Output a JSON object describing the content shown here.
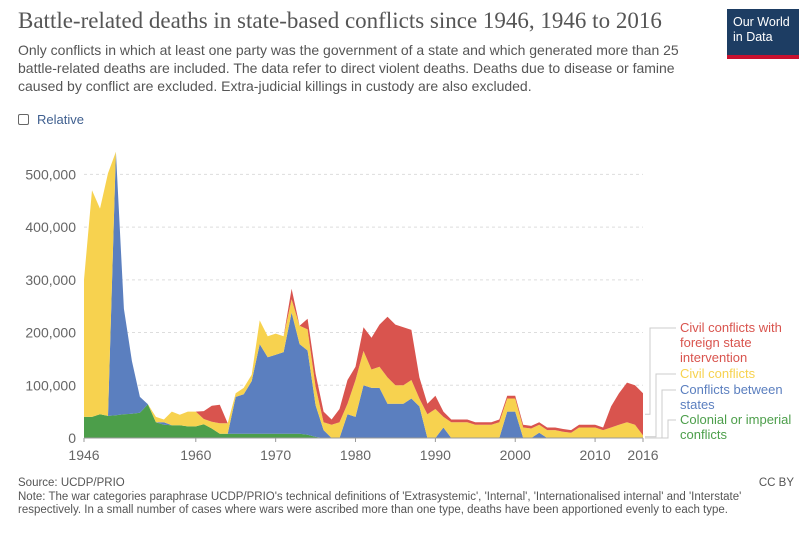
{
  "header": {
    "title": "Battle-related deaths in state-based conflicts since 1946, 1946 to 2016",
    "subtitle": "Only conflicts in which at least one party was the government of a state and which generated more than 25 battle-related deaths are included. The data refer to direct violent deaths. Deaths due to disease or famine caused by conflict are excluded. Extra-judicial killings in custody are also excluded."
  },
  "logo": {
    "line1": "Our World",
    "line2": "in Data"
  },
  "controls": {
    "relative_label": "Relative"
  },
  "footer": {
    "source": "Source: UCDP/PRIO",
    "note": "Note: The war categories paraphrase UCDP/PRIO's technical definitions of 'Extrasystemic', 'Internal', 'Internationalised internal' and 'Interstate' respectively. In a small number of cases where wars were ascribed more than one type, deaths have been apportioned evenly to each type.",
    "license": "CC BY"
  },
  "colors": {
    "colonial": "#4c9e4a",
    "between": "#5b7fbf",
    "civil": "#f7d24f",
    "foreign": "#d9544e",
    "grid": "#dddddd"
  },
  "chart_data": {
    "type": "area",
    "stacked": true,
    "title": "Battle-related deaths in state-based conflicts since 1946, 1946 to 2016",
    "xlabel": "",
    "ylabel": "",
    "xlim": [
      1946,
      2016
    ],
    "ylim": [
      0,
      550000
    ],
    "yticks": [
      0,
      100000,
      200000,
      300000,
      400000,
      500000
    ],
    "ytick_labels": [
      "0",
      "100,000",
      "200,000",
      "300,000",
      "400,000",
      "500,000"
    ],
    "xticks": [
      1946,
      1960,
      1970,
      1980,
      1990,
      2000,
      2010,
      2016
    ],
    "xtick_labels": [
      "1946",
      "1960",
      "1970",
      "1980",
      "1990",
      "2000",
      "2010",
      "2016"
    ],
    "x": [
      1946,
      1947,
      1948,
      1949,
      1950,
      1951,
      1952,
      1953,
      1954,
      1955,
      1956,
      1957,
      1958,
      1959,
      1960,
      1961,
      1962,
      1963,
      1964,
      1965,
      1966,
      1967,
      1968,
      1969,
      1970,
      1971,
      1972,
      1973,
      1974,
      1975,
      1976,
      1977,
      1978,
      1979,
      1980,
      1981,
      1982,
      1983,
      1984,
      1985,
      1986,
      1987,
      1988,
      1989,
      1990,
      1991,
      1992,
      1993,
      1994,
      1995,
      1996,
      1997,
      1998,
      1999,
      2000,
      2001,
      2002,
      2003,
      2004,
      2005,
      2006,
      2007,
      2008,
      2009,
      2010,
      2011,
      2012,
      2013,
      2014,
      2015,
      2016
    ],
    "series": [
      {
        "name": "Colonial or imperial conflicts",
        "legend": "Colonial or imperial conflicts",
        "color_key": "colonial",
        "values": [
          40000,
          40000,
          45000,
          42000,
          43000,
          45000,
          46000,
          48000,
          64000,
          30000,
          25000,
          24000,
          24000,
          22000,
          22000,
          26000,
          18000,
          8000,
          8000,
          8000,
          8000,
          8000,
          8000,
          8000,
          8000,
          8000,
          8000,
          8000,
          6000,
          2000,
          0,
          0,
          0,
          0,
          0,
          0,
          0,
          0,
          0,
          0,
          0,
          0,
          0,
          0,
          0,
          0,
          0,
          0,
          0,
          0,
          0,
          0,
          0,
          0,
          0,
          0,
          0,
          0,
          0,
          0,
          0,
          0,
          0,
          0,
          0,
          0,
          0,
          0,
          0,
          0,
          0
        ]
      },
      {
        "name": "Conflicts between states",
        "legend": "Conflicts between states",
        "color_key": "between",
        "values": [
          0,
          0,
          0,
          0,
          500000,
          200000,
          100000,
          30000,
          0,
          0,
          5000,
          0,
          0,
          0,
          0,
          0,
          0,
          0,
          0,
          70000,
          75000,
          100000,
          170000,
          145000,
          150000,
          155000,
          230000,
          170000,
          160000,
          60000,
          15000,
          0,
          0,
          45000,
          40000,
          100000,
          95000,
          95000,
          65000,
          65000,
          65000,
          75000,
          60000,
          0,
          0,
          20000,
          0,
          0,
          0,
          0,
          0,
          0,
          0,
          50000,
          50000,
          0,
          0,
          10000,
          0,
          0,
          0,
          0,
          0,
          0,
          0,
          0,
          0,
          0,
          0,
          0,
          0
        ]
      },
      {
        "name": "Civil conflicts",
        "legend": "Civil conflicts",
        "color_key": "civil",
        "values": [
          260000,
          430000,
          390000,
          460000,
          0,
          0,
          0,
          0,
          0,
          10000,
          5000,
          26000,
          20000,
          28000,
          28000,
          10000,
          13000,
          20000,
          20000,
          7000,
          12000,
          12000,
          45000,
          40000,
          40000,
          30000,
          25000,
          35000,
          40000,
          35000,
          15000,
          25000,
          30000,
          20000,
          70000,
          65000,
          35000,
          40000,
          50000,
          35000,
          35000,
          35000,
          15000,
          45000,
          55000,
          20000,
          30000,
          30000,
          30000,
          25000,
          25000,
          25000,
          30000,
          25000,
          25000,
          20000,
          18000,
          15000,
          15000,
          15000,
          12000,
          10000,
          20000,
          20000,
          20000,
          15000,
          20000,
          25000,
          30000,
          25000,
          5000
        ]
      },
      {
        "name": "Civil conflicts with foreign state intervention",
        "legend": "Civil conflicts with foreign state intervention",
        "color_key": "foreign",
        "values": [
          0,
          0,
          0,
          0,
          0,
          0,
          0,
          0,
          0,
          0,
          0,
          0,
          0,
          0,
          0,
          15000,
          30000,
          35000,
          0,
          0,
          0,
          0,
          0,
          0,
          0,
          0,
          20000,
          0,
          20000,
          25000,
          20000,
          10000,
          25000,
          45000,
          25000,
          45000,
          60000,
          80000,
          115000,
          115000,
          110000,
          95000,
          40000,
          20000,
          25000,
          10000,
          5000,
          5000,
          5000,
          5000,
          5000,
          5000,
          5000,
          5000,
          5000,
          5000,
          5000,
          5000,
          5000,
          5000,
          5000,
          5000,
          5000,
          5000,
          5000,
          5000,
          40000,
          60000,
          75000,
          75000,
          80000
        ]
      }
    ]
  }
}
